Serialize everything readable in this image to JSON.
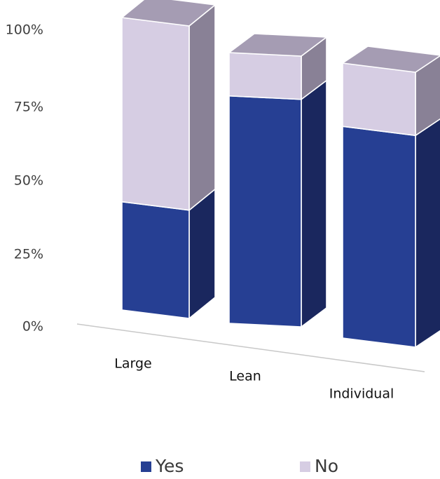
{
  "chart_data": {
    "type": "bar",
    "stacked": "percent",
    "three_d": true,
    "categories": [
      "Large",
      "Lean",
      "Individual"
    ],
    "series": [
      {
        "name": "Yes",
        "values": [
          37,
          84,
          77
        ]
      },
      {
        "name": "No",
        "values": [
          63,
          16,
          23
        ]
      }
    ],
    "yticks": [
      "0%",
      "25%",
      "50%",
      "75%",
      "100%"
    ],
    "ylim": [
      0,
      100
    ],
    "legend_position": "bottom",
    "title": "",
    "xlabel": "",
    "ylabel": "",
    "colors": {
      "Yes": {
        "front": "#263F93",
        "side": "#1A275E",
        "top": "#1F2F76"
      },
      "No": {
        "front": "#D6CDE3",
        "side": "#898196",
        "top": "#A59CB3"
      },
      "floor": "#C8C8C8"
    }
  }
}
